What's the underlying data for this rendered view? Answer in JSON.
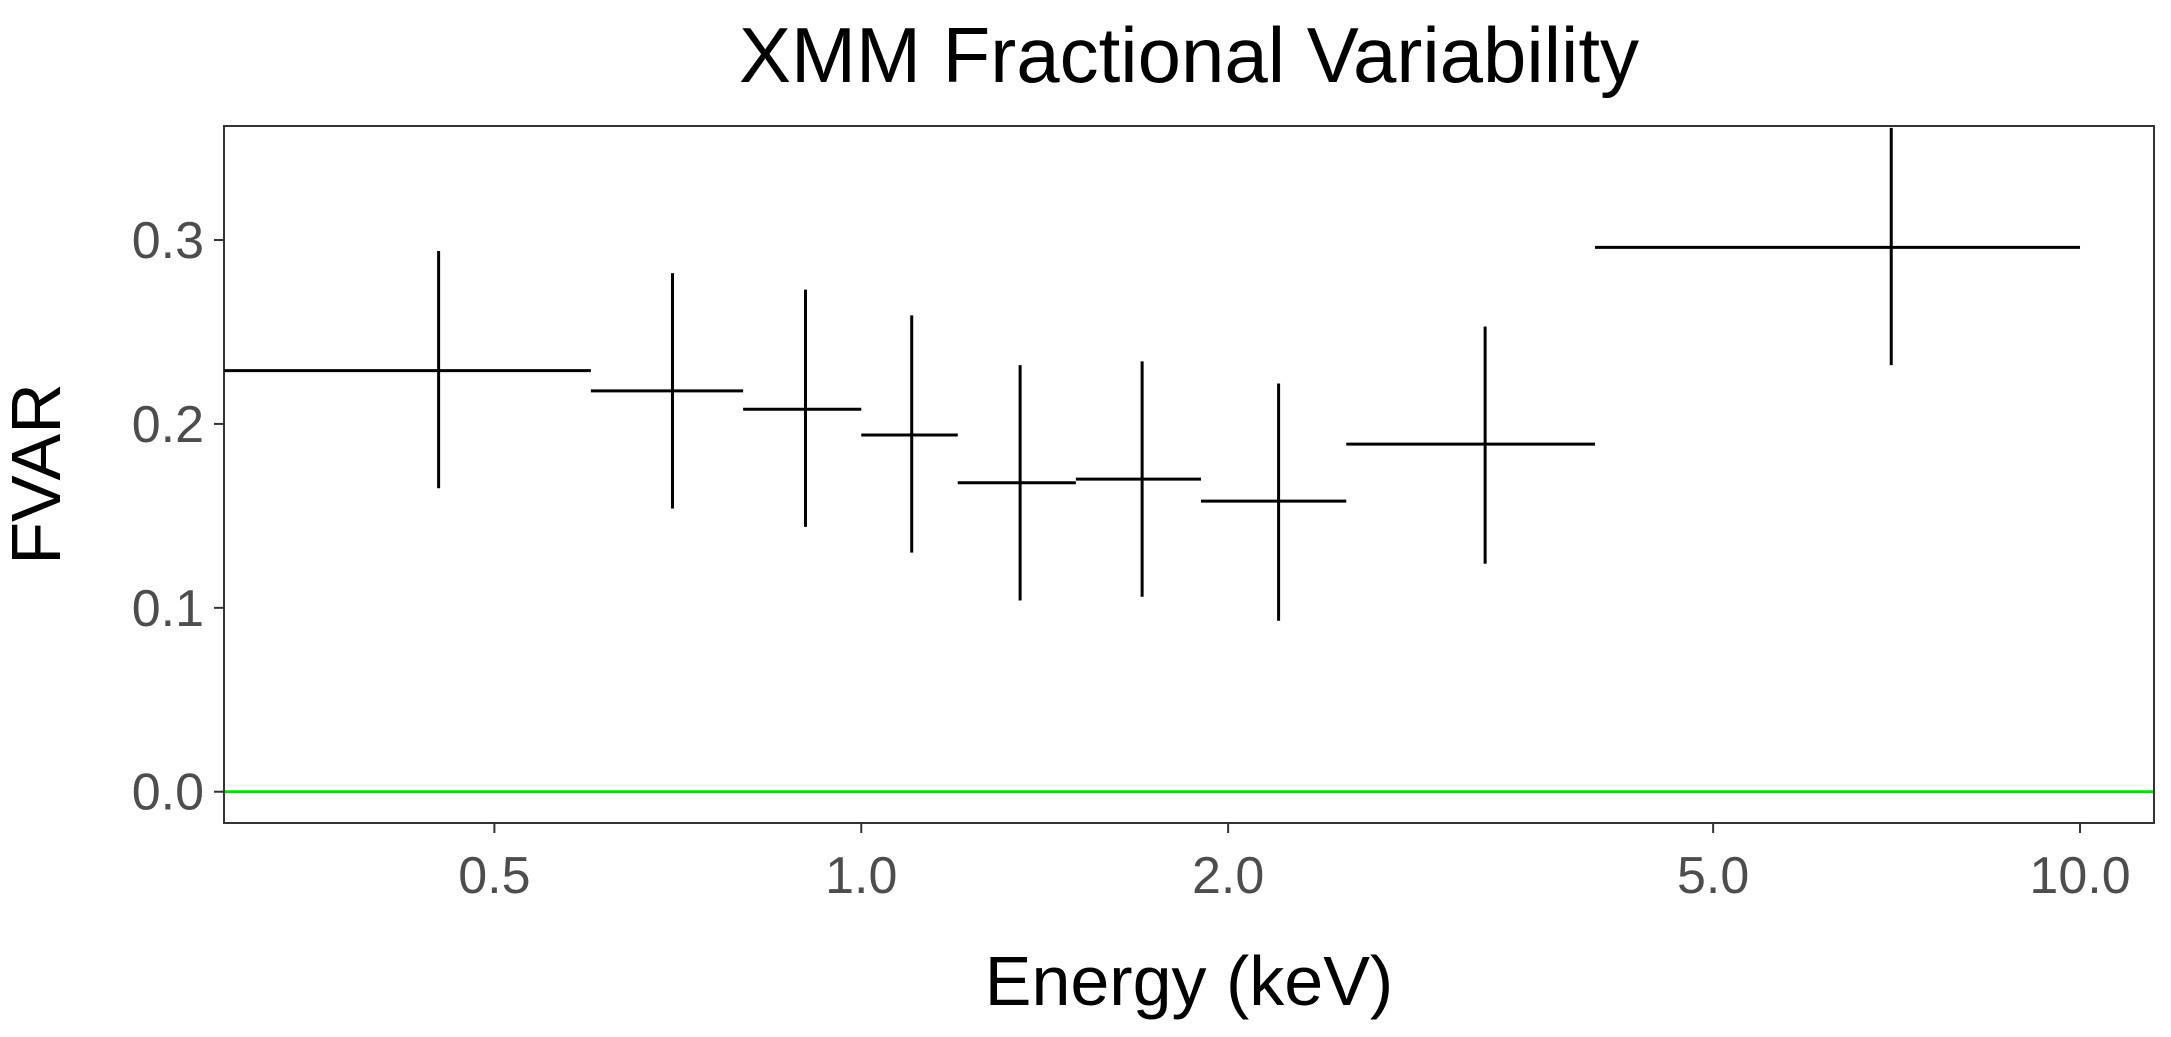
{
  "chart_data": {
    "type": "scatter",
    "title": "XMM Fractional Variability",
    "xlabel": "Energy (keV)",
    "ylabel": "FVAR",
    "x_scale": "log",
    "xlim": [
      0.3,
      11.5
    ],
    "ylim": [
      -0.017,
      0.362
    ],
    "x_ticks": [
      0.5,
      1.0,
      2.0,
      5.0,
      10.0
    ],
    "x_tick_labels": [
      "0.5",
      "1.0",
      "2.0",
      "5.0",
      "10.0"
    ],
    "y_ticks": [
      0.0,
      0.1,
      0.2,
      0.3
    ],
    "y_tick_labels": [
      "0.0",
      "0.1",
      "0.2",
      "0.3"
    ],
    "grid": false,
    "reference_line": {
      "y": 0.0,
      "color": "#00e000"
    },
    "points": [
      {
        "x": 0.45,
        "x_low": 0.3,
        "x_high": 0.6,
        "y": 0.229,
        "y_low": 0.165,
        "y_high": 0.294
      },
      {
        "x": 0.7,
        "x_low": 0.6,
        "x_high": 0.8,
        "y": 0.218,
        "y_low": 0.154,
        "y_high": 0.282
      },
      {
        "x": 0.9,
        "x_low": 0.8,
        "x_high": 1.0,
        "y": 0.208,
        "y_low": 0.144,
        "y_high": 0.273
      },
      {
        "x": 1.1,
        "x_low": 1.0,
        "x_high": 1.2,
        "y": 0.194,
        "y_low": 0.13,
        "y_high": 0.259
      },
      {
        "x": 1.35,
        "x_low": 1.2,
        "x_high": 1.5,
        "y": 0.168,
        "y_low": 0.104,
        "y_high": 0.232
      },
      {
        "x": 1.7,
        "x_low": 1.5,
        "x_high": 1.9,
        "y": 0.17,
        "y_low": 0.106,
        "y_high": 0.234
      },
      {
        "x": 2.2,
        "x_low": 1.9,
        "x_high": 2.5,
        "y": 0.158,
        "y_low": 0.093,
        "y_high": 0.222
      },
      {
        "x": 3.25,
        "x_low": 2.5,
        "x_high": 4.0,
        "y": 0.189,
        "y_low": 0.124,
        "y_high": 0.253
      },
      {
        "x": 7.0,
        "x_low": 4.0,
        "x_high": 10.0,
        "y": 0.296,
        "y_low": 0.232,
        "y_high": 0.361
      }
    ]
  }
}
